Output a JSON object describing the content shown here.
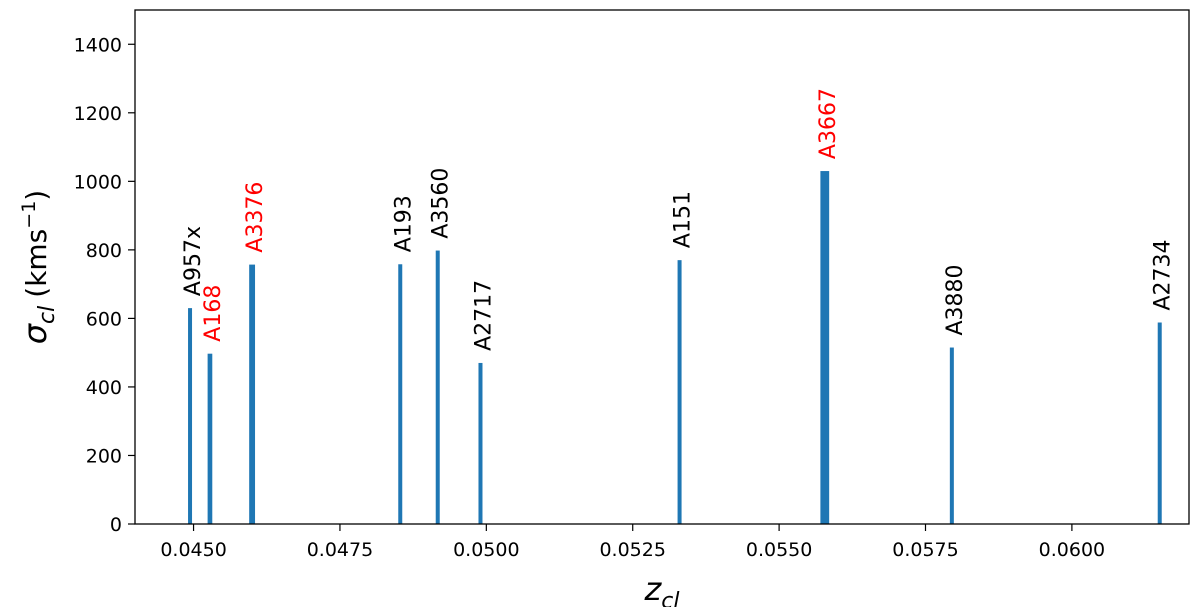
{
  "chart_data": {
    "type": "bar",
    "xlabel": "z",
    "xlabel_sub": "cl",
    "ylabel": "σ",
    "ylabel_sub": "cl",
    "ylabel_unit": "(kms",
    "ylabel_unit_sup": "−1",
    "ylabel_unit_close": ")",
    "xlim": [
      0.044,
      0.062
    ],
    "ylim": [
      0,
      1500
    ],
    "xticks": [
      0.045,
      0.0475,
      0.05,
      0.0525,
      0.055,
      0.0575,
      0.06
    ],
    "xtick_labels": [
      "0.0450",
      "0.0475",
      "0.0500",
      "0.0525",
      "0.0550",
      "0.0575",
      "0.0600"
    ],
    "yticks": [
      0,
      200,
      400,
      600,
      800,
      1000,
      1200,
      1400
    ],
    "ytick_labels": [
      "0",
      "200",
      "400",
      "600",
      "800",
      "1000",
      "1200",
      "1400"
    ],
    "bar_color": "#1f77b4",
    "label_colors": {
      "default": "#000000",
      "highlight": "#ff0000"
    },
    "bars": [
      {
        "name": "A957x",
        "x": 0.04494,
        "value": 630,
        "width": 5e-05,
        "highlight": false
      },
      {
        "name": "A168",
        "x": 0.04528,
        "value": 497,
        "width": 8e-05,
        "highlight": true
      },
      {
        "name": "A3376",
        "x": 0.046,
        "value": 757,
        "width": 0.0001,
        "highlight": true
      },
      {
        "name": "A193",
        "x": 0.04853,
        "value": 758,
        "width": 5e-05,
        "highlight": false
      },
      {
        "name": "A3560",
        "x": 0.04917,
        "value": 798,
        "width": 5e-05,
        "highlight": false
      },
      {
        "name": "A2717",
        "x": 0.0499,
        "value": 470,
        "width": 5e-05,
        "highlight": false
      },
      {
        "name": "A151",
        "x": 0.0533,
        "value": 770,
        "width": 5e-05,
        "highlight": false
      },
      {
        "name": "A3667",
        "x": 0.05578,
        "value": 1030,
        "width": 0.00015,
        "highlight": true
      },
      {
        "name": "A3880",
        "x": 0.05795,
        "value": 515,
        "width": 5e-05,
        "highlight": false
      },
      {
        "name": "A2734",
        "x": 0.0615,
        "value": 588,
        "width": 5e-05,
        "highlight": false
      }
    ]
  }
}
